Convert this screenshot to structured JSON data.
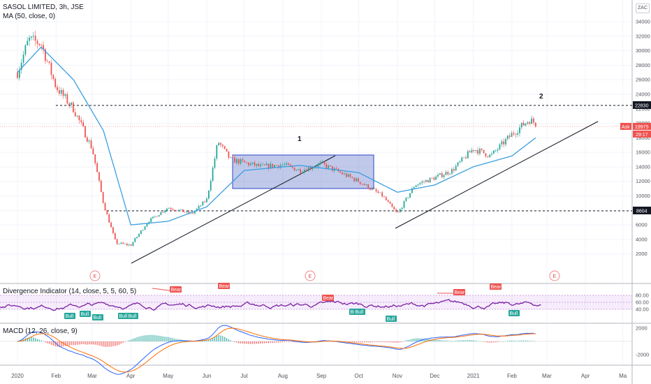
{
  "header": {
    "symbol_line": "SASOL LIMITED, 3h, JSE",
    "ma_legend": "MA (50, close, 0)",
    "currency_button": "ZAC"
  },
  "indicators": {
    "divergence_legend": "Divergence Indicator (14, close, 5, 5, 60, 5)",
    "macd_legend": "MACD (12, 26, close, 9)"
  },
  "price_axis": {
    "ticks": [
      "34000",
      "32000",
      "30000",
      "28000",
      "26000",
      "24000",
      "22000",
      "20000",
      "18000",
      "16000",
      "14000",
      "12000",
      "10000",
      "8000",
      "6000",
      "4000",
      "2000"
    ],
    "resistance_label": "22830",
    "support_label": "8604",
    "ask_label": "Ask",
    "ask_price": "19975",
    "countdown": "29:17"
  },
  "rsi_axis": {
    "ticks": [
      "80.00",
      "60.00",
      "40.00"
    ]
  },
  "macd_axis": {
    "ticks": [
      "2000",
      "-2000"
    ]
  },
  "time_axis": {
    "labels": [
      "2020",
      "Feb",
      "Mar",
      "Apr",
      "May",
      "Jun",
      "Jul",
      "Aug",
      "Sep",
      "Oct",
      "Nov",
      "Dec",
      "2021",
      "Feb",
      "Mar",
      "Apr",
      "Ma"
    ]
  },
  "annotations": {
    "label_1": "1",
    "label_2": "2"
  },
  "events": {
    "marker": "E"
  },
  "divergence_tags": {
    "bull": "Bull",
    "bear": "Bear"
  },
  "chart_data": {
    "type": "candlestick",
    "instrument": "SASOL LIMITED",
    "interval": "3h",
    "exchange": "JSE",
    "currency": "ZAC",
    "ylim": [
      0,
      35000
    ],
    "horizontal_levels": [
      22830,
      8604
    ],
    "last_price": 19975,
    "price_path": [
      [
        "2020-01-01",
        27000
      ],
      [
        "2020-01-10",
        31500
      ],
      [
        "2020-01-20",
        31000
      ],
      [
        "2020-02-01",
        25000
      ],
      [
        "2020-02-15",
        22000
      ],
      [
        "2020-03-01",
        16500
      ],
      [
        "2020-03-10",
        9000
      ],
      [
        "2020-03-20",
        3500
      ],
      [
        "2020-04-01",
        3200
      ],
      [
        "2020-04-15",
        6500
      ],
      [
        "2020-05-01",
        8400
      ],
      [
        "2020-05-20",
        7500
      ],
      [
        "2020-06-01",
        9500
      ],
      [
        "2020-06-10",
        17500
      ],
      [
        "2020-06-20",
        15000
      ],
      [
        "2020-07-15",
        14000
      ],
      [
        "2020-08-01",
        14300
      ],
      [
        "2020-08-15",
        13500
      ],
      [
        "2020-09-01",
        14400
      ],
      [
        "2020-10-01",
        12000
      ],
      [
        "2020-10-20",
        10000
      ],
      [
        "2020-11-01",
        7500
      ],
      [
        "2020-11-15",
        11500
      ],
      [
        "2020-12-01",
        12500
      ],
      [
        "2020-12-15",
        13500
      ],
      [
        "2021-01-01",
        16500
      ],
      [
        "2021-01-15",
        15500
      ],
      [
        "2021-02-01",
        18500
      ],
      [
        "2021-02-15",
        20500
      ],
      [
        "2021-02-20",
        19975
      ]
    ],
    "moving_average_50": [
      [
        "2020-01-01",
        27000
      ],
      [
        "2020-01-20",
        30500
      ],
      [
        "2020-02-15",
        26000
      ],
      [
        "2020-03-10",
        19000
      ],
      [
        "2020-04-01",
        6000
      ],
      [
        "2020-05-01",
        6500
      ],
      [
        "2020-06-01",
        8500
      ],
      [
        "2020-07-01",
        13500
      ],
      [
        "2020-08-15",
        14200
      ],
      [
        "2020-10-01",
        13200
      ],
      [
        "2020-11-01",
        10500
      ],
      [
        "2020-12-01",
        11500
      ],
      [
        "2021-01-01",
        14000
      ],
      [
        "2021-02-01",
        15500
      ],
      [
        "2021-02-20",
        18000
      ]
    ],
    "rsi_ylim": [
      25,
      95
    ],
    "rsi_reference_lines": [
      80,
      60,
      40
    ],
    "macd_ylim": [
      -3500,
      3000
    ]
  }
}
